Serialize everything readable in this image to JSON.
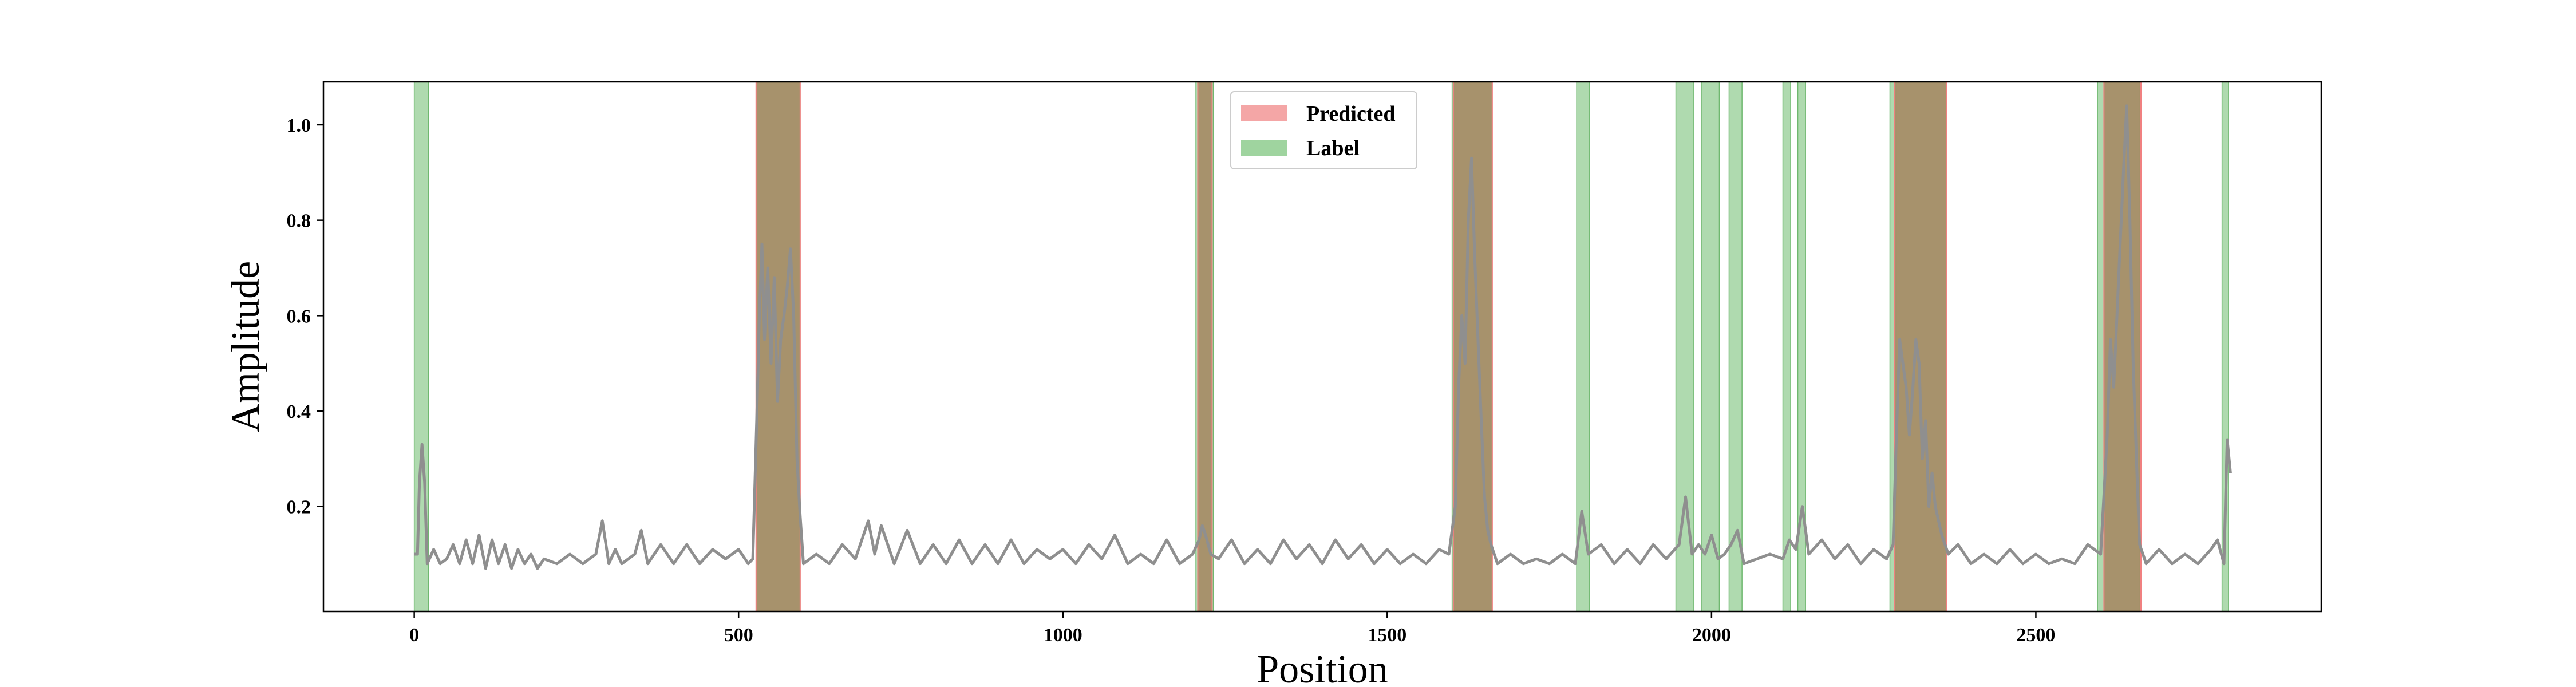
{
  "chart_data": {
    "type": "line",
    "xlabel": "Position",
    "ylabel": "Amplitude",
    "xlim": [
      -140,
      2940
    ],
    "ylim": [
      -0.02,
      1.09
    ],
    "x_ticks": [
      0,
      500,
      1000,
      1500,
      2000,
      2500
    ],
    "y_ticks": [
      0.2,
      0.4,
      0.6,
      0.8,
      1.0
    ],
    "grid": false,
    "legend": {
      "placement": "top-center",
      "entries": [
        {
          "name": "Predicted",
          "color": "#f4a6a6"
        },
        {
          "name": "Label",
          "color": "#9fd49f"
        }
      ]
    },
    "colors": {
      "line": "#8f8f8f",
      "predicted": "#f08080",
      "label": "#90cc90",
      "overlap": "#a68e68"
    },
    "predicted_regions": [
      [
        527,
        595
      ],
      [
        1208,
        1230
      ],
      [
        1602,
        1662
      ],
      [
        2282,
        2362
      ],
      [
        2605,
        2662
      ]
    ],
    "label_regions": [
      [
        0,
        22
      ],
      [
        527,
        595
      ],
      [
        1205,
        1232
      ],
      [
        1600,
        1660
      ],
      [
        1792,
        1812
      ],
      [
        1945,
        1972
      ],
      [
        1985,
        2012
      ],
      [
        2027,
        2047
      ],
      [
        2110,
        2122
      ],
      [
        2133,
        2145
      ],
      [
        2275,
        2285
      ],
      [
        2282,
        2360
      ],
      [
        2595,
        2605
      ],
      [
        2605,
        2660
      ],
      [
        2787,
        2797
      ]
    ],
    "series": [
      {
        "name": "Amplitude",
        "points": [
          [
            0,
            0.1
          ],
          [
            5,
            0.1
          ],
          [
            8,
            0.25
          ],
          [
            12,
            0.33
          ],
          [
            16,
            0.25
          ],
          [
            20,
            0.08
          ],
          [
            30,
            0.11
          ],
          [
            40,
            0.08
          ],
          [
            50,
            0.09
          ],
          [
            60,
            0.12
          ],
          [
            70,
            0.08
          ],
          [
            80,
            0.13
          ],
          [
            90,
            0.08
          ],
          [
            100,
            0.14
          ],
          [
            110,
            0.07
          ],
          [
            120,
            0.13
          ],
          [
            130,
            0.08
          ],
          [
            140,
            0.12
          ],
          [
            150,
            0.07
          ],
          [
            160,
            0.11
          ],
          [
            170,
            0.08
          ],
          [
            180,
            0.1
          ],
          [
            190,
            0.07
          ],
          [
            200,
            0.09
          ],
          [
            220,
            0.08
          ],
          [
            240,
            0.1
          ],
          [
            260,
            0.08
          ],
          [
            280,
            0.1
          ],
          [
            290,
            0.17
          ],
          [
            300,
            0.08
          ],
          [
            310,
            0.11
          ],
          [
            320,
            0.08
          ],
          [
            340,
            0.1
          ],
          [
            350,
            0.15
          ],
          [
            360,
            0.08
          ],
          [
            380,
            0.12
          ],
          [
            400,
            0.08
          ],
          [
            420,
            0.12
          ],
          [
            440,
            0.08
          ],
          [
            460,
            0.11
          ],
          [
            480,
            0.09
          ],
          [
            500,
            0.11
          ],
          [
            515,
            0.08
          ],
          [
            522,
            0.09
          ],
          [
            528,
            0.38
          ],
          [
            532,
            0.6
          ],
          [
            536,
            0.75
          ],
          [
            540,
            0.55
          ],
          [
            545,
            0.7
          ],
          [
            550,
            0.5
          ],
          [
            555,
            0.68
          ],
          [
            560,
            0.42
          ],
          [
            565,
            0.55
          ],
          [
            570,
            0.6
          ],
          [
            575,
            0.66
          ],
          [
            580,
            0.74
          ],
          [
            585,
            0.6
          ],
          [
            590,
            0.3
          ],
          [
            595,
            0.18
          ],
          [
            600,
            0.08
          ],
          [
            620,
            0.1
          ],
          [
            640,
            0.08
          ],
          [
            660,
            0.12
          ],
          [
            680,
            0.09
          ],
          [
            700,
            0.17
          ],
          [
            710,
            0.1
          ],
          [
            720,
            0.16
          ],
          [
            740,
            0.08
          ],
          [
            760,
            0.15
          ],
          [
            780,
            0.08
          ],
          [
            800,
            0.12
          ],
          [
            820,
            0.08
          ],
          [
            840,
            0.13
          ],
          [
            860,
            0.08
          ],
          [
            880,
            0.12
          ],
          [
            900,
            0.08
          ],
          [
            920,
            0.13
          ],
          [
            940,
            0.08
          ],
          [
            960,
            0.11
          ],
          [
            980,
            0.09
          ],
          [
            1000,
            0.11
          ],
          [
            1020,
            0.08
          ],
          [
            1040,
            0.12
          ],
          [
            1060,
            0.09
          ],
          [
            1080,
            0.14
          ],
          [
            1100,
            0.08
          ],
          [
            1120,
            0.1
          ],
          [
            1140,
            0.08
          ],
          [
            1160,
            0.13
          ],
          [
            1180,
            0.08
          ],
          [
            1200,
            0.1
          ],
          [
            1210,
            0.13
          ],
          [
            1215,
            0.16
          ],
          [
            1220,
            0.14
          ],
          [
            1228,
            0.1
          ],
          [
            1240,
            0.09
          ],
          [
            1260,
            0.13
          ],
          [
            1280,
            0.08
          ],
          [
            1300,
            0.11
          ],
          [
            1320,
            0.08
          ],
          [
            1340,
            0.13
          ],
          [
            1360,
            0.09
          ],
          [
            1380,
            0.12
          ],
          [
            1400,
            0.08
          ],
          [
            1420,
            0.13
          ],
          [
            1440,
            0.09
          ],
          [
            1460,
            0.12
          ],
          [
            1480,
            0.08
          ],
          [
            1500,
            0.11
          ],
          [
            1520,
            0.08
          ],
          [
            1540,
            0.1
          ],
          [
            1560,
            0.08
          ],
          [
            1580,
            0.11
          ],
          [
            1595,
            0.1
          ],
          [
            1605,
            0.2
          ],
          [
            1610,
            0.45
          ],
          [
            1615,
            0.6
          ],
          [
            1620,
            0.5
          ],
          [
            1625,
            0.8
          ],
          [
            1630,
            0.93
          ],
          [
            1635,
            0.72
          ],
          [
            1640,
            0.55
          ],
          [
            1645,
            0.38
          ],
          [
            1650,
            0.22
          ],
          [
            1655,
            0.15
          ],
          [
            1660,
            0.12
          ],
          [
            1670,
            0.08
          ],
          [
            1690,
            0.1
          ],
          [
            1710,
            0.08
          ],
          [
            1730,
            0.09
          ],
          [
            1750,
            0.08
          ],
          [
            1770,
            0.1
          ],
          [
            1790,
            0.08
          ],
          [
            1800,
            0.19
          ],
          [
            1810,
            0.1
          ],
          [
            1830,
            0.12
          ],
          [
            1850,
            0.08
          ],
          [
            1870,
            0.11
          ],
          [
            1890,
            0.08
          ],
          [
            1910,
            0.12
          ],
          [
            1930,
            0.09
          ],
          [
            1950,
            0.12
          ],
          [
            1960,
            0.22
          ],
          [
            1970,
            0.1
          ],
          [
            1980,
            0.12
          ],
          [
            1990,
            0.1
          ],
          [
            2000,
            0.14
          ],
          [
            2010,
            0.09
          ],
          [
            2020,
            0.1
          ],
          [
            2030,
            0.12
          ],
          [
            2040,
            0.15
          ],
          [
            2050,
            0.08
          ],
          [
            2070,
            0.09
          ],
          [
            2090,
            0.1
          ],
          [
            2110,
            0.09
          ],
          [
            2120,
            0.13
          ],
          [
            2130,
            0.11
          ],
          [
            2140,
            0.2
          ],
          [
            2150,
            0.1
          ],
          [
            2170,
            0.13
          ],
          [
            2190,
            0.09
          ],
          [
            2210,
            0.12
          ],
          [
            2230,
            0.08
          ],
          [
            2250,
            0.11
          ],
          [
            2270,
            0.09
          ],
          [
            2280,
            0.12
          ],
          [
            2285,
            0.35
          ],
          [
            2290,
            0.55
          ],
          [
            2295,
            0.5
          ],
          [
            2300,
            0.45
          ],
          [
            2305,
            0.35
          ],
          [
            2310,
            0.44
          ],
          [
            2315,
            0.55
          ],
          [
            2320,
            0.5
          ],
          [
            2325,
            0.3
          ],
          [
            2330,
            0.38
          ],
          [
            2335,
            0.2
          ],
          [
            2340,
            0.27
          ],
          [
            2345,
            0.2
          ],
          [
            2355,
            0.14
          ],
          [
            2365,
            0.1
          ],
          [
            2380,
            0.12
          ],
          [
            2400,
            0.08
          ],
          [
            2420,
            0.1
          ],
          [
            2440,
            0.08
          ],
          [
            2460,
            0.11
          ],
          [
            2480,
            0.08
          ],
          [
            2500,
            0.1
          ],
          [
            2520,
            0.08
          ],
          [
            2540,
            0.09
          ],
          [
            2560,
            0.08
          ],
          [
            2580,
            0.12
          ],
          [
            2600,
            0.1
          ],
          [
            2610,
            0.35
          ],
          [
            2615,
            0.55
          ],
          [
            2620,
            0.45
          ],
          [
            2625,
            0.6
          ],
          [
            2630,
            0.75
          ],
          [
            2635,
            0.9
          ],
          [
            2640,
            1.04
          ],
          [
            2645,
            0.8
          ],
          [
            2650,
            0.5
          ],
          [
            2655,
            0.3
          ],
          [
            2660,
            0.12
          ],
          [
            2670,
            0.08
          ],
          [
            2690,
            0.11
          ],
          [
            2710,
            0.08
          ],
          [
            2730,
            0.1
          ],
          [
            2750,
            0.08
          ],
          [
            2770,
            0.11
          ],
          [
            2780,
            0.13
          ],
          [
            2790,
            0.08
          ],
          [
            2795,
            0.34
          ],
          [
            2800,
            0.27
          ]
        ]
      }
    ]
  }
}
